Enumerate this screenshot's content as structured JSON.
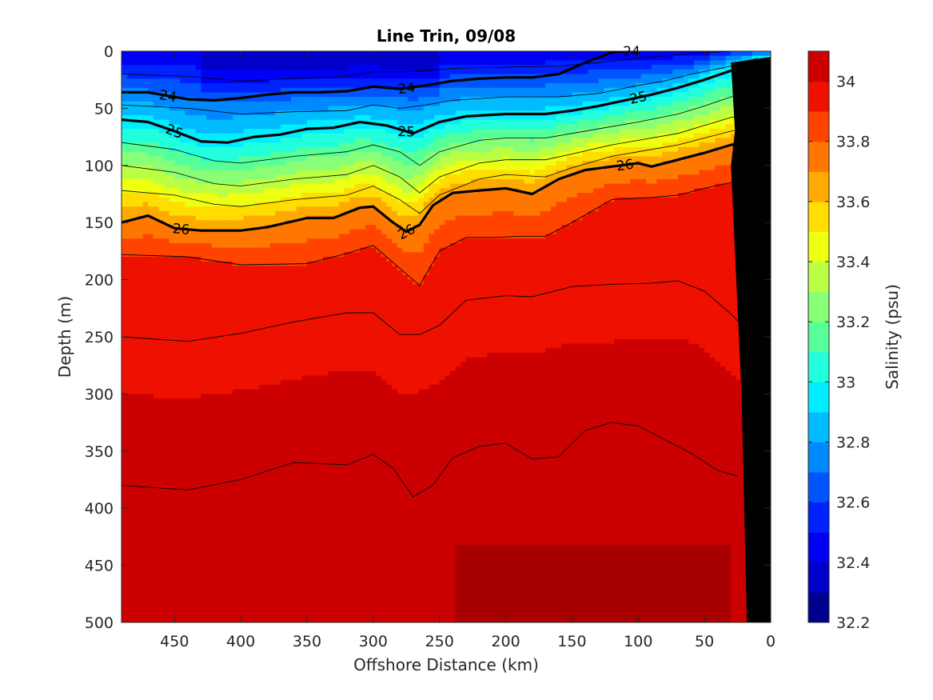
{
  "chart_data": {
    "type": "heatmap",
    "title": "Line Trin, 09/08",
    "xlabel": "Offshore Distance (km)",
    "ylabel": "Depth (m)",
    "colorbar_label": "Salinity (psu)",
    "xlim": [
      490,
      0
    ],
    "ylim": [
      0,
      500
    ],
    "x_ticks": [
      "450",
      "400",
      "350",
      "300",
      "250",
      "200",
      "150",
      "100",
      "50",
      "0"
    ],
    "y_ticks": [
      "0",
      "50",
      "100",
      "150",
      "200",
      "250",
      "300",
      "350",
      "400",
      "450",
      "500"
    ],
    "colorbar_range": [
      32.2,
      34.1
    ],
    "colorbar_ticks": [
      "32.2",
      "32.4",
      "32.6",
      "32.8",
      "33",
      "33.2",
      "33.4",
      "33.6",
      "33.8",
      "34"
    ],
    "colorbar_levels": [
      32.2,
      32.3,
      32.4,
      32.5,
      32.6,
      32.7,
      32.8,
      32.9,
      33.0,
      33.1,
      33.2,
      33.3,
      33.4,
      33.5,
      33.6,
      33.7,
      33.8,
      33.9,
      34.0,
      34.1
    ],
    "colorbar_colors": [
      "#00008f",
      "#0000c8",
      "#0000f4",
      "#0022ff",
      "#0055ff",
      "#0088ff",
      "#00bbff",
      "#00eeff",
      "#22ffdd",
      "#55ff99",
      "#88ff77",
      "#bbff44",
      "#eeff11",
      "#ffdd00",
      "#ffaa00",
      "#ff7700",
      "#ff4400",
      "#ee1100",
      "#cc0000",
      "#a80000"
    ],
    "isopycnal_sigma_theta": [
      {
        "level": 24,
        "label": "24",
        "x": [
          490,
          470,
          440,
          420,
          400,
          380,
          360,
          340,
          320,
          300,
          280,
          260,
          240,
          220,
          200,
          180,
          160,
          140,
          120,
          110,
          100
        ],
        "depth": [
          36,
          36,
          42,
          43,
          41,
          38,
          36,
          36,
          35,
          31,
          33,
          30,
          26,
          24,
          23,
          23,
          20,
          10,
          1,
          0,
          0
        ]
      },
      {
        "level": 25,
        "label": "25",
        "x": [
          490,
          470,
          450,
          430,
          410,
          390,
          370,
          350,
          330,
          310,
          290,
          270,
          250,
          230,
          200,
          170,
          150,
          130,
          110,
          90,
          70,
          50,
          30,
          10
        ],
        "depth": [
          60,
          62,
          70,
          79,
          80,
          75,
          73,
          68,
          67,
          62,
          65,
          72,
          62,
          57,
          55,
          55,
          52,
          48,
          43,
          38,
          32,
          25,
          17,
          9
        ]
      },
      {
        "level": 26,
        "label": "26",
        "x": [
          490,
          470,
          450,
          430,
          400,
          380,
          350,
          330,
          310,
          300,
          285,
          275,
          265,
          255,
          240,
          220,
          200,
          180,
          160,
          140,
          120,
          100,
          90,
          70,
          50,
          30,
          10
        ],
        "depth": [
          150,
          144,
          155,
          157,
          157,
          154,
          146,
          146,
          137,
          136,
          150,
          158,
          152,
          135,
          124,
          122,
          120,
          125,
          112,
          104,
          101,
          98,
          101,
          95,
          89,
          82,
          80
        ]
      }
    ],
    "thin_isopycnals": [
      {
        "x": [
          490,
          440,
          400,
          350,
          320,
          300,
          280,
          265,
          250,
          230,
          210,
          190,
          170,
          150,
          120,
          90,
          70,
          50,
          30,
          20
        ],
        "depth": [
          178,
          180,
          187,
          186,
          177,
          170,
          190,
          205,
          175,
          163,
          163,
          162,
          162,
          150,
          130,
          128,
          126,
          120,
          115,
          113
        ]
      },
      {
        "x": [
          490,
          440,
          400,
          360,
          320,
          300,
          280,
          265,
          250,
          230,
          200,
          180,
          150,
          120,
          90,
          70,
          50,
          30,
          20
        ],
        "depth": [
          250,
          254,
          247,
          237,
          229,
          229,
          248,
          248,
          240,
          218,
          214,
          215,
          206,
          204,
          203,
          201,
          210,
          230,
          242
        ]
      },
      {
        "x": [
          490,
          440,
          400,
          360,
          320,
          300,
          285,
          270,
          255,
          240,
          220,
          200,
          180,
          160,
          140,
          120,
          100,
          80,
          60,
          40,
          25
        ],
        "depth": [
          380,
          384,
          375,
          360,
          362,
          353,
          365,
          390,
          380,
          356,
          346,
          343,
          357,
          355,
          332,
          325,
          328,
          340,
          352,
          367,
          372
        ]
      }
    ],
    "bathymetry": {
      "x": [
        0,
        18,
        22,
        30,
        27,
        30,
        0
      ],
      "depth": [
        500,
        500,
        300,
        100,
        70,
        10,
        5
      ]
    }
  }
}
